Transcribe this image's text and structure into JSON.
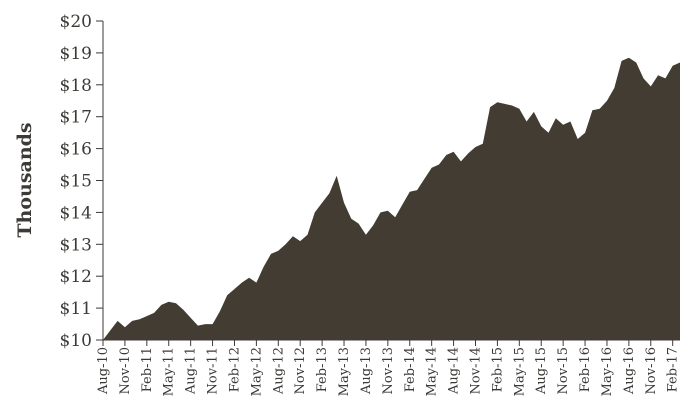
{
  "chart_data": {
    "type": "area",
    "ylabel": "Thousands",
    "xlabel": "",
    "ylim": [
      10,
      20
    ],
    "y_ticks": [
      "$10",
      "$11",
      "$12",
      "$13",
      "$14",
      "$15",
      "$16",
      "$17",
      "$18",
      "$19",
      "$20"
    ],
    "x_ticks": [
      "Aug-10",
      "Nov-10",
      "Feb-11",
      "May-11",
      "Aug-11",
      "Nov-11",
      "Feb-12",
      "May-12",
      "Aug-12",
      "Nov-12",
      "Feb-13",
      "May-13",
      "Aug-13",
      "Nov-13",
      "Feb-14",
      "May-14",
      "Aug-14",
      "Nov-14",
      "Feb-15",
      "May-15",
      "Aug-15",
      "Nov-15",
      "Feb-16",
      "May-16",
      "Aug-16",
      "Nov-16",
      "Feb-17"
    ],
    "fill_color": "#433c32",
    "axis_color": "#3c3a37",
    "grid": false,
    "series": [
      {
        "x": [
          "Aug-10",
          "Sep-10",
          "Oct-10",
          "Nov-10",
          "Dec-10",
          "Jan-11",
          "Feb-11",
          "Mar-11",
          "Apr-11",
          "May-11",
          "Jun-11",
          "Jul-11",
          "Aug-11",
          "Sep-11",
          "Oct-11",
          "Nov-11",
          "Dec-11",
          "Jan-12",
          "Feb-12",
          "Mar-12",
          "Apr-12",
          "May-12",
          "Jun-12",
          "Jul-12",
          "Aug-12",
          "Sep-12",
          "Oct-12",
          "Nov-12",
          "Dec-12",
          "Jan-13",
          "Feb-13",
          "Mar-13",
          "Apr-13",
          "May-13",
          "Jun-13",
          "Jul-13",
          "Aug-13",
          "Sep-13",
          "Oct-13",
          "Nov-13",
          "Dec-13",
          "Jan-14",
          "Feb-14",
          "Mar-14",
          "Apr-14",
          "May-14",
          "Jun-14",
          "Jul-14",
          "Aug-14",
          "Sep-14",
          "Oct-14",
          "Nov-14",
          "Dec-14",
          "Jan-15",
          "Feb-15",
          "Mar-15",
          "Apr-15",
          "May-15",
          "Jun-15",
          "Jul-15",
          "Aug-15",
          "Sep-15",
          "Oct-15",
          "Nov-15",
          "Dec-15",
          "Jan-16",
          "Feb-16",
          "Mar-16",
          "Apr-16",
          "May-16",
          "Jun-16",
          "Jul-16",
          "Aug-16",
          "Sep-16",
          "Oct-16",
          "Nov-16",
          "Dec-16",
          "Jan-17",
          "Feb-17",
          "Mar-17"
        ],
        "values": [
          10.0,
          10.3,
          10.6,
          10.4,
          10.6,
          10.65,
          10.75,
          10.85,
          11.1,
          11.2,
          11.15,
          10.95,
          10.7,
          10.45,
          10.5,
          10.5,
          10.9,
          11.4,
          11.6,
          11.8,
          11.95,
          11.8,
          12.3,
          12.7,
          12.8,
          13.0,
          13.25,
          13.1,
          13.3,
          14.0,
          14.3,
          14.6,
          15.15,
          14.3,
          13.8,
          13.65,
          13.3,
          13.6,
          14.0,
          14.05,
          13.85,
          14.25,
          14.65,
          14.7,
          15.05,
          15.4,
          15.5,
          15.8,
          15.9,
          15.6,
          15.85,
          16.05,
          16.15,
          17.3,
          17.45,
          17.4,
          17.35,
          17.25,
          16.85,
          17.15,
          16.7,
          16.5,
          16.95,
          16.75,
          16.85,
          16.3,
          16.5,
          17.2,
          17.25,
          17.5,
          17.9,
          18.75,
          18.85,
          18.7,
          18.2,
          17.95,
          18.3,
          18.2,
          18.6,
          18.7
        ]
      }
    ]
  }
}
